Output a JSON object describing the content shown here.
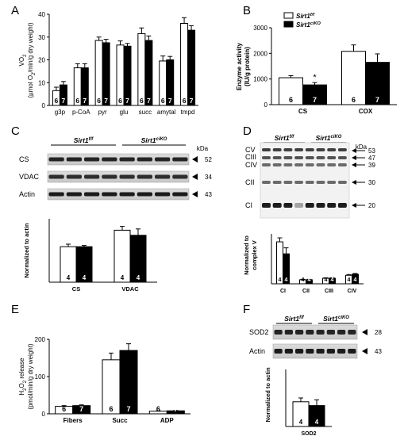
{
  "panel_letters": [
    "A",
    "B",
    "C",
    "D",
    "E",
    "F"
  ],
  "colors": {
    "wt": "#ffffff",
    "ko": "#000000",
    "axis": "#000000"
  },
  "chart_data": [
    {
      "panel": "A",
      "type": "bar",
      "ylabel_line1": "VO",
      "ylabel_sub": "2",
      "ylabel_line2": "(µmol O",
      "ylabel_line2_sub": "2",
      "ylabel_line2_end": "/min/g dry weight)",
      "ylim": [
        0,
        40
      ],
      "yticks": [
        "0",
        "10",
        "20",
        "30",
        "40"
      ],
      "categories": [
        "g3p",
        "p-CoA",
        "pyr",
        "glu",
        "succ",
        "amytal",
        "tmpd"
      ],
      "series": [
        {
          "values": [
            6.5,
            16.5,
            28.5,
            26.5,
            31.5,
            19.5,
            36
          ],
          "errors": [
            1.5,
            1.8,
            1.5,
            1.8,
            2.5,
            2.2,
            2.5
          ]
        },
        {
          "values": [
            9,
            16.5,
            27.5,
            26,
            28.5,
            20,
            33
          ],
          "errors": [
            1.5,
            1.8,
            1.5,
            1.2,
            2,
            1.5,
            2
          ]
        }
      ],
      "n_labels": [
        "6",
        "7"
      ]
    },
    {
      "panel": "B",
      "type": "bar",
      "ylabel_line1": "Enzyme activity",
      "ylabel_line2": "(IU/g protein)",
      "ylim": [
        0,
        3000
      ],
      "yticks": [
        "0",
        "1000",
        "2000",
        "3000"
      ],
      "categories": [
        "CS",
        "COX"
      ],
      "legend": [
        "Sirt1",
        "Sirt1"
      ],
      "legend_sup": [
        "f/f",
        "ciKO"
      ],
      "series": [
        {
          "values": [
            1050,
            2080
          ],
          "errors": [
            80,
            250
          ]
        },
        {
          "values": [
            770,
            1650
          ],
          "errors": [
            90,
            330
          ]
        }
      ],
      "n_labels": [
        "6",
        "7"
      ],
      "annotation": "*"
    },
    {
      "panel": "C",
      "type": "bar",
      "blot": {
        "groups": [
          "Sirt1",
          "Sirt1"
        ],
        "group_sup": [
          "f/f",
          "ciKO"
        ],
        "unit": "kDa",
        "rows": [
          {
            "label": "CS",
            "kda": "52"
          },
          {
            "label": "VDAC",
            "kda": "34"
          },
          {
            "label": "Actin",
            "kda": "43"
          }
        ]
      },
      "ylabel": "Normalized to actin",
      "ylim": [
        0,
        0.25
      ],
      "categories": [
        "CS",
        "VDAC"
      ],
      "series": [
        {
          "values": [
            0.14,
            0.205
          ],
          "errors": [
            0.01,
            0.015
          ]
        },
        {
          "values": [
            0.14,
            0.185
          ],
          "errors": [
            0.005,
            0.025
          ]
        }
      ],
      "n_labels": [
        "4",
        "4"
      ]
    },
    {
      "panel": "D",
      "type": "bar",
      "blot": {
        "groups": [
          "Sirt1",
          "Sirt1"
        ],
        "group_sup": [
          "f/f",
          "ciKO"
        ],
        "unit": "kDa",
        "left_labels": [
          "CV",
          "CIII",
          "CIV",
          "CII",
          "CI"
        ],
        "kda_labels": [
          "53",
          "47",
          "39",
          "30",
          "20"
        ]
      },
      "ylabel_line1": "Normalized to",
      "ylabel_line2": "complex V",
      "ylim": [
        0,
        5
      ],
      "categories": [
        "CI",
        "CII",
        "CIII",
        "CIV"
      ],
      "series": [
        {
          "values": [
            4.2,
            0.4,
            0.55,
            0.85
          ],
          "errors": [
            0.4,
            0.05,
            0.05,
            0.08
          ]
        },
        {
          "values": [
            3.0,
            0.4,
            0.55,
            0.95
          ],
          "errors": [
            0.6,
            0.05,
            0.05,
            0.08
          ]
        }
      ],
      "n_labels": [
        "4",
        "4"
      ]
    },
    {
      "panel": "E",
      "type": "bar",
      "ylabel_line1": "H",
      "ylabel_line1_mid": "O",
      "ylabel_line1_end": " release",
      "ylabel_line1_sub1": "2",
      "ylabel_line1_sub2": "2",
      "ylabel_line2": "(pmol/min/g dry weight)",
      "ylim": [
        0,
        200
      ],
      "yticks": [
        "0",
        "100",
        "200"
      ],
      "categories": [
        "Fibers",
        "Succ",
        "ADP"
      ],
      "series": [
        {
          "values": [
            20,
            145,
            7
          ],
          "errors": [
            2,
            18,
            1
          ]
        },
        {
          "values": [
            22,
            170,
            8
          ],
          "errors": [
            2,
            18,
            1
          ]
        }
      ],
      "n_labels": [
        "6",
        "7"
      ]
    },
    {
      "panel": "F",
      "type": "bar",
      "blot": {
        "groups": [
          "Sirt1",
          "Sirt1"
        ],
        "group_sup": [
          "f/f",
          "ciKO"
        ],
        "rows": [
          {
            "label": "SOD2",
            "kda": "28"
          },
          {
            "label": "Actin",
            "kda": "43"
          }
        ]
      },
      "ylabel": "Normalized to actin",
      "ylim": [
        0,
        0.3
      ],
      "categories": [
        "SOD2"
      ],
      "series": [
        {
          "values": [
            0.13
          ],
          "errors": [
            0.02
          ]
        },
        {
          "values": [
            0.11
          ],
          "errors": [
            0.03
          ]
        }
      ],
      "n_labels": [
        "4",
        "4"
      ]
    }
  ]
}
